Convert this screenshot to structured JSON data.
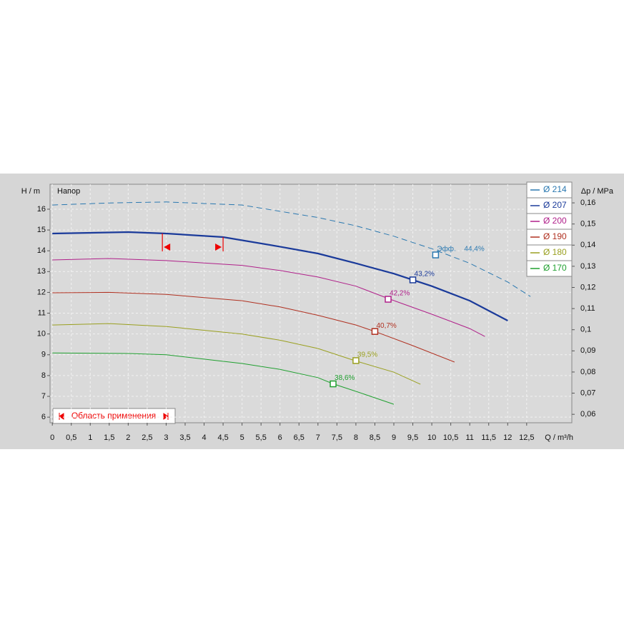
{
  "chart_data": {
    "type": "line",
    "y_label": "H / m",
    "y_title": "Напор",
    "y2_label": "Δp / MPa",
    "x_label": "Q / m³/h",
    "annotation": "Эфф.",
    "operating_range": {
      "label": "Область применения",
      "x": [
        2.9,
        4.5
      ]
    },
    "xlim": [
      -0.06,
      13.69
    ],
    "ylim": [
      5.73,
      17.2
    ],
    "y2lim": [
      0.056,
      0.1688
    ],
    "xticks": [
      0,
      {
        "value": 0.5,
        "label": "0,5"
      },
      1,
      {
        "value": 1.5,
        "label": "1,5"
      },
      2,
      {
        "value": 2.5,
        "label": "2,5"
      },
      3,
      {
        "value": 3.5,
        "label": "3,5"
      },
      4,
      {
        "value": 4.5,
        "label": "4,5"
      },
      5,
      {
        "value": 5.5,
        "label": "5,5"
      },
      6,
      {
        "value": 6.5,
        "label": "6,5"
      },
      7,
      {
        "value": 7.5,
        "label": "7,5"
      },
      8,
      {
        "value": 8.5,
        "label": "8,5"
      },
      9,
      {
        "value": 9.5,
        "label": "9,5"
      },
      10,
      {
        "value": 10.5,
        "label": "10,5"
      },
      11,
      {
        "value": 11.5,
        "label": "11,5"
      },
      12,
      {
        "value": 12.5,
        "label": "12,5"
      }
    ],
    "yticks": [
      6,
      7,
      8,
      9,
      10,
      11,
      12,
      13,
      14,
      15,
      16
    ],
    "y2ticks": [
      {
        "value": 0.06,
        "label": "0,06"
      },
      {
        "value": 0.07,
        "label": "0,07"
      },
      {
        "value": 0.08,
        "label": "0,08"
      },
      {
        "value": 0.09,
        "label": "0,09"
      },
      {
        "value": 0.1,
        "label": "0,1"
      },
      {
        "value": 0.11,
        "label": "0,11"
      },
      {
        "value": 0.12,
        "label": "0,12"
      },
      {
        "value": 0.13,
        "label": "0,13"
      },
      {
        "value": 0.14,
        "label": "0,14"
      },
      {
        "value": 0.15,
        "label": "0,15"
      },
      {
        "value": 0.16,
        "label": "0,16"
      }
    ],
    "grid": true,
    "series": [
      {
        "name": "Ø 214",
        "color": "#2a78b0",
        "line_style": "dashed",
        "x": [
          0,
          1.5,
          3,
          5,
          6,
          7,
          8,
          9,
          10,
          11,
          12,
          12.6
        ],
        "values": [
          16.2,
          16.3,
          16.35,
          16.2,
          15.9,
          15.6,
          15.2,
          14.7,
          14.1,
          13.4,
          12.5,
          11.8
        ],
        "bep": {
          "x": 10.1,
          "y": 13.8,
          "efficiency": 44.4,
          "efficiency_label": "44,4%"
        }
      },
      {
        "name": "Ø 207",
        "color": "#1a3a9a",
        "line_style": "bold",
        "x": [
          0,
          2,
          3,
          4.5,
          6,
          7,
          8,
          9,
          9.5,
          10,
          11,
          12
        ],
        "values": [
          14.83,
          14.9,
          14.83,
          14.66,
          14.2,
          13.87,
          13.4,
          12.9,
          12.6,
          12.3,
          11.6,
          10.64
        ],
        "bep": {
          "x": 9.5,
          "y": 12.6,
          "efficiency": 43.2,
          "efficiency_label": "43,2%"
        }
      },
      {
        "name": "Ø 200",
        "color": "#b0208a",
        "x": [
          0,
          1.5,
          3,
          5,
          6,
          7,
          8,
          8.9,
          10,
          11,
          11.4
        ],
        "values": [
          13.56,
          13.63,
          13.53,
          13.3,
          13.05,
          12.74,
          12.3,
          11.67,
          10.95,
          10.26,
          9.88
        ],
        "bep": {
          "x": 8.85,
          "y": 11.67,
          "efficiency": 42.2,
          "efficiency_label": "42,2%"
        }
      },
      {
        "name": "Ø 190",
        "color": "#b03020",
        "x": [
          0,
          1.5,
          3,
          5,
          6,
          7,
          8,
          8.5,
          9.5,
          10.6
        ],
        "values": [
          11.98,
          12.0,
          11.9,
          11.6,
          11.3,
          10.9,
          10.43,
          10.12,
          9.44,
          8.65
        ],
        "bep": {
          "x": 8.5,
          "y": 10.12,
          "efficiency": 40.7,
          "efficiency_label": "40,7%"
        }
      },
      {
        "name": "Ø 180",
        "color": "#9aa020",
        "x": [
          0,
          1.5,
          3,
          5,
          6,
          7,
          8,
          9,
          9.7
        ],
        "values": [
          10.43,
          10.5,
          10.36,
          10.0,
          9.7,
          9.3,
          8.7,
          8.16,
          7.58
        ],
        "bep": {
          "x": 8.0,
          "y": 8.72,
          "efficiency": 39.5,
          "efficiency_label": "39,5%"
        }
      },
      {
        "name": "Ø 170",
        "color": "#20a030",
        "x": [
          0,
          2,
          3,
          5,
          6,
          7,
          7.4,
          8,
          9
        ],
        "values": [
          9.09,
          9.06,
          9.0,
          8.58,
          8.3,
          7.9,
          7.6,
          7.24,
          6.62
        ],
        "bep": {
          "x": 7.4,
          "y": 7.6,
          "efficiency": 38.6,
          "efficiency_label": "38,6%"
        }
      }
    ]
  }
}
